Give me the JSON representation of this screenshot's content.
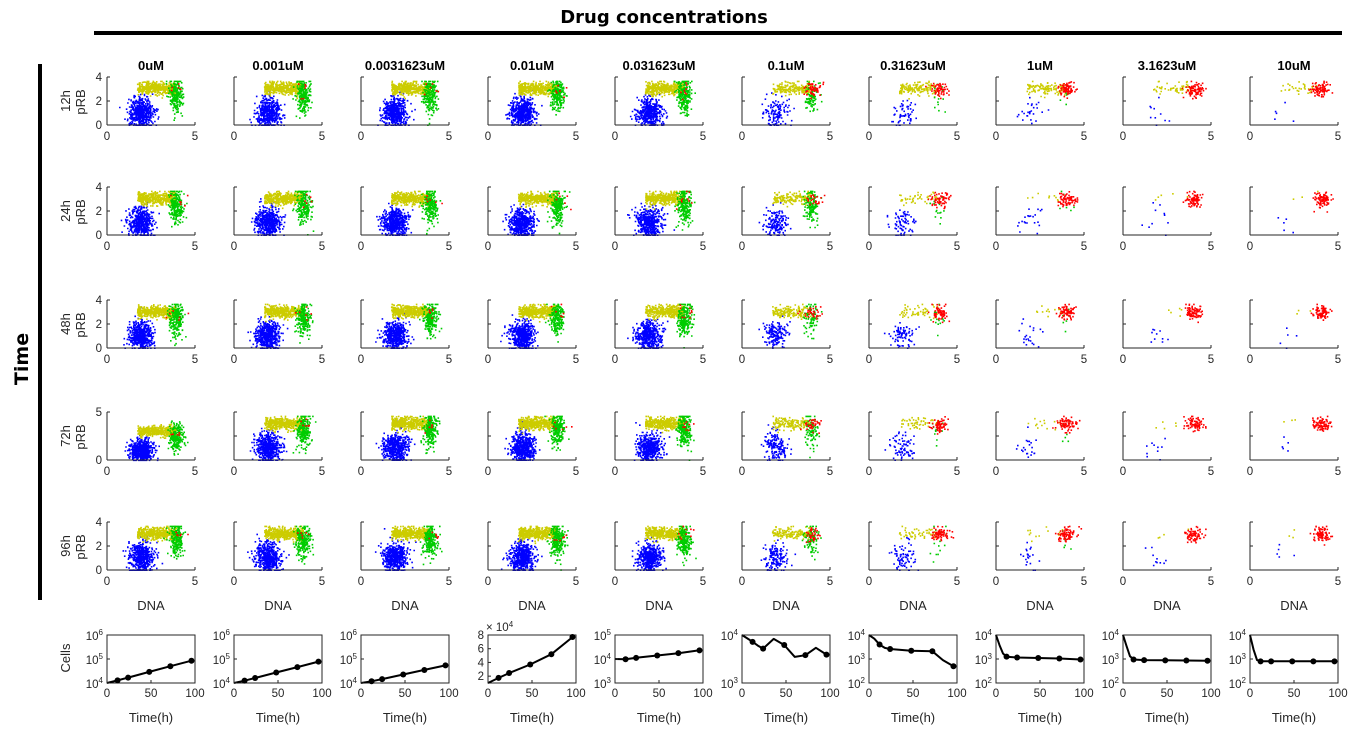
{
  "figure": {
    "top_label": "Drug concentrations",
    "side_label": "Time"
  },
  "colors": {
    "G1": "#0000ff",
    "S": "#cccc00",
    "G2": "#ff0000",
    "M": "#00cc00",
    "growth_line": "#000000"
  },
  "chart_data": {
    "type": "scatter",
    "concentrations": [
      "0uM",
      "0.001uM",
      "0.0031623uM",
      "0.01uM",
      "0.031623uM",
      "0.1uM",
      "0.31623uM",
      "1uM",
      "3.1623uM",
      "10uM"
    ],
    "time_points": [
      "12h",
      "24h",
      "48h",
      "72h",
      "96h"
    ],
    "xlabel": "DNA",
    "ylabel": "pRB",
    "xlim": [
      0,
      5
    ],
    "xticks": [
      "0",
      "5"
    ],
    "ylim_default": [
      0,
      4
    ],
    "yticks_default": [
      "0",
      "2",
      "4"
    ],
    "ylim_72h_0uM": [
      0,
      5
    ],
    "yticks_72h_0uM": [
      "0",
      "5"
    ],
    "clusters": {
      "G1": {
        "dna_center": 1.9,
        "dna_spread": 0.35,
        "prb_center": 1.1,
        "prb_spread": 0.6
      },
      "S": {
        "dna_range": [
          1.7,
          3.9
        ],
        "prb_center": 3.1,
        "prb_spread": 0.25
      },
      "G2": {
        "dna_center": 4.0,
        "dna_spread": 0.25,
        "prb_center": 3.0,
        "prb_spread": 0.3
      },
      "M": {
        "dna_center": 3.9,
        "dna_spread": 0.2,
        "prb_center": 2.5,
        "prb_spread": 0.7
      }
    },
    "relative_counts": {
      "G1": [
        [
          1,
          1,
          1,
          1,
          0.9,
          0.25,
          0.12,
          0.05,
          0.02,
          0.01
        ],
        [
          1,
          1,
          1,
          1,
          0.9,
          0.3,
          0.15,
          0.04,
          0.02,
          0.01
        ],
        [
          1,
          1,
          1,
          1,
          0.9,
          0.3,
          0.15,
          0.04,
          0.02,
          0.01
        ],
        [
          1,
          1,
          1,
          1,
          0.9,
          0.3,
          0.15,
          0.04,
          0.02,
          0.01
        ],
        [
          1,
          1,
          1,
          1,
          0.9,
          0.3,
          0.15,
          0.04,
          0.02,
          0.01
        ]
      ],
      "S": [
        [
          1,
          1,
          1,
          1,
          0.9,
          0.4,
          0.3,
          0.25,
          0.12,
          0.06
        ],
        [
          1,
          1,
          1,
          1,
          0.9,
          0.35,
          0.1,
          0.02,
          0.01,
          0.005
        ],
        [
          1,
          1,
          1,
          1,
          0.9,
          0.35,
          0.12,
          0.03,
          0.01,
          0.005
        ],
        [
          1,
          1,
          1,
          1,
          0.9,
          0.35,
          0.12,
          0.03,
          0.01,
          0.005
        ],
        [
          1,
          1,
          1,
          1,
          0.9,
          0.35,
          0.12,
          0.03,
          0.01,
          0.005
        ]
      ],
      "G2": [
        [
          0.05,
          0.05,
          0.05,
          0.05,
          0.08,
          0.5,
          0.6,
          0.7,
          0.75,
          0.75
        ],
        [
          0.05,
          0.05,
          0.05,
          0.05,
          0.08,
          0.2,
          0.6,
          0.7,
          0.75,
          0.75
        ],
        [
          0.05,
          0.05,
          0.05,
          0.05,
          0.08,
          0.3,
          0.6,
          0.7,
          0.75,
          0.75
        ],
        [
          0.05,
          0.05,
          0.05,
          0.05,
          0.08,
          0.3,
          0.6,
          0.7,
          0.75,
          0.75
        ],
        [
          0.05,
          0.05,
          0.05,
          0.05,
          0.08,
          0.3,
          0.6,
          0.7,
          0.75,
          0.75
        ]
      ],
      "M": [
        [
          0.8,
          0.8,
          0.8,
          0.8,
          0.8,
          0.3,
          0.05,
          0.02,
          0.0,
          0.0
        ],
        [
          0.8,
          0.8,
          0.8,
          0.8,
          0.8,
          0.5,
          0.05,
          0.02,
          0.0,
          0.0
        ],
        [
          0.8,
          0.8,
          0.8,
          0.8,
          0.8,
          0.3,
          0.05,
          0.02,
          0.0,
          0.0
        ],
        [
          0.8,
          0.8,
          0.8,
          0.8,
          0.8,
          0.3,
          0.05,
          0.02,
          0.0,
          0.0
        ],
        [
          0.8,
          0.8,
          0.8,
          0.8,
          0.8,
          0.3,
          0.05,
          0.02,
          0.0,
          0.0
        ]
      ]
    },
    "growth": {
      "type": "line",
      "xlabel": "Time(h)",
      "ylabel": "Cells",
      "xlim": [
        0,
        100
      ],
      "xticks": [
        "0",
        "50",
        "100"
      ],
      "panels": [
        {
          "scale": "log",
          "ylim_exp": [
            4,
            6
          ],
          "ytick_exps": [
            4,
            5,
            6
          ],
          "x": [
            0,
            12,
            24,
            48,
            72,
            96
          ],
          "y": [
            10000,
            12800,
            16800,
            29000,
            50000,
            85000
          ],
          "markers": [
            12,
            24,
            48,
            72,
            96
          ]
        },
        {
          "scale": "log",
          "ylim_exp": [
            4,
            6
          ],
          "ytick_exps": [
            4,
            5,
            6
          ],
          "x": [
            0,
            12,
            24,
            48,
            72,
            96
          ],
          "y": [
            10000,
            12500,
            16200,
            27500,
            46000,
            78000
          ],
          "markers": [
            12,
            24,
            48,
            72,
            96
          ]
        },
        {
          "scale": "log",
          "ylim_exp": [
            4,
            6
          ],
          "ytick_exps": [
            4,
            5,
            6
          ],
          "x": [
            0,
            12,
            24,
            48,
            72,
            96
          ],
          "y": [
            10000,
            11800,
            14500,
            22500,
            35000,
            54000
          ],
          "markers": [
            12,
            24,
            48,
            72,
            96
          ]
        },
        {
          "scale": "linear",
          "ylim": [
            10000,
            80000
          ],
          "yticks": [
            20000,
            40000,
            60000,
            80000
          ],
          "ytick_labels": [
            "2",
            "4",
            "6",
            "8"
          ],
          "multiplier_base": "× 10",
          "multiplier_exp": "4",
          "x": [
            0,
            12,
            24,
            48,
            72,
            96
          ],
          "y": [
            10000,
            17500,
            24500,
            37000,
            52000,
            77000
          ],
          "markers": [
            12,
            24,
            48,
            72,
            96
          ]
        },
        {
          "scale": "log",
          "ylim_exp": [
            3,
            5
          ],
          "ytick_exps": [
            3,
            4,
            5
          ],
          "x": [
            0,
            12,
            24,
            48,
            72,
            96
          ],
          "y": [
            10000,
            9800,
            11200,
            14000,
            17500,
            23000
          ],
          "markers": [
            12,
            24,
            48,
            72,
            96
          ]
        },
        {
          "scale": "log",
          "ylim_exp": [
            3,
            4
          ],
          "ytick_exps": [
            3,
            4
          ],
          "x": [
            0,
            6,
            12,
            18,
            24,
            36,
            48,
            60,
            72,
            84,
            96
          ],
          "y": [
            10000,
            8500,
            7200,
            6000,
            5200,
            8300,
            6200,
            3500,
            3800,
            5400,
            3900
          ],
          "markers": [
            12,
            24,
            48,
            72,
            96
          ]
        },
        {
          "scale": "log",
          "ylim_exp": [
            2,
            4
          ],
          "ytick_exps": [
            2,
            3,
            4
          ],
          "x": [
            0,
            6,
            12,
            18,
            24,
            48,
            72,
            84,
            96
          ],
          "y": [
            10000,
            7000,
            4000,
            2900,
            2600,
            2200,
            2100,
            900,
            500
          ],
          "markers": [
            12,
            24,
            48,
            72,
            96
          ]
        },
        {
          "scale": "log",
          "ylim_exp": [
            2,
            4
          ],
          "ytick_exps": [
            2,
            3,
            4
          ],
          "x": [
            0,
            4,
            8,
            12,
            24,
            48,
            72,
            96
          ],
          "y": [
            10000,
            3800,
            1700,
            1250,
            1150,
            1100,
            1050,
            950
          ],
          "markers": [
            12,
            24,
            48,
            72,
            96
          ]
        },
        {
          "scale": "log",
          "ylim_exp": [
            2,
            4
          ],
          "ytick_exps": [
            2,
            3,
            4
          ],
          "x": [
            0,
            4,
            8,
            12,
            24,
            48,
            72,
            96
          ],
          "y": [
            10000,
            3500,
            1300,
            950,
            900,
            880,
            870,
            850
          ],
          "markers": [
            12,
            24,
            48,
            72,
            96
          ]
        },
        {
          "scale": "log",
          "ylim_exp": [
            2,
            4
          ],
          "ytick_exps": [
            2,
            3,
            4
          ],
          "x": [
            0,
            4,
            8,
            12,
            24,
            48,
            72,
            96
          ],
          "y": [
            10000,
            2500,
            900,
            800,
            800,
            800,
            800,
            800
          ],
          "markers": [
            12,
            24,
            48,
            72,
            96
          ]
        }
      ]
    }
  }
}
